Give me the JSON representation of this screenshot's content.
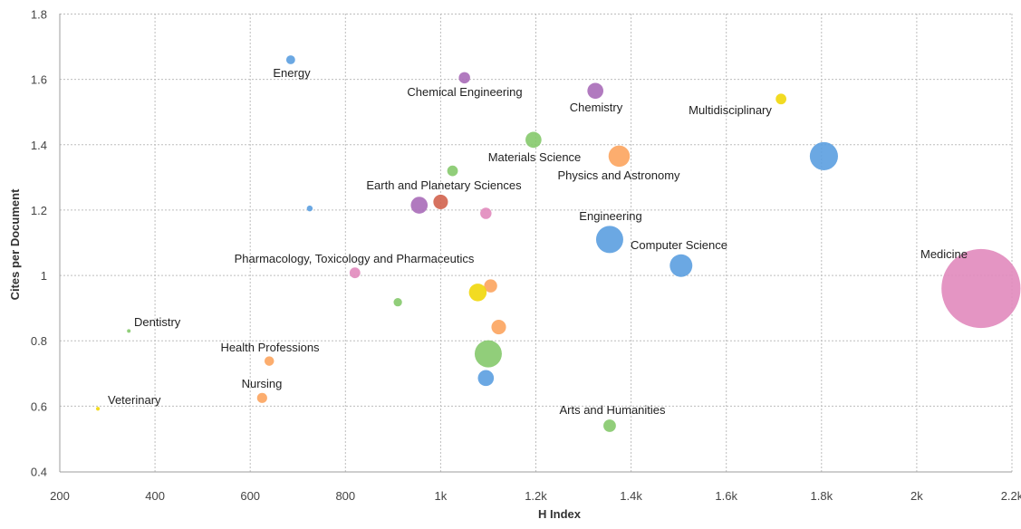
{
  "chart_data": {
    "type": "scatter",
    "subtype": "bubble",
    "xlabel": "H Index",
    "ylabel": "Cites per Document",
    "xlim": [
      200,
      2200
    ],
    "ylim": [
      0.4,
      1.8
    ],
    "x_ticks": [
      200,
      400,
      600,
      800,
      1000,
      1200,
      1400,
      1600,
      1800,
      2000,
      2200
    ],
    "x_tick_labels": [
      "200",
      "400",
      "600",
      "800",
      "1k",
      "1.2k",
      "1.4k",
      "1.6k",
      "1.8k",
      "2k",
      "2.2k"
    ],
    "y_ticks": [
      0.4,
      0.6,
      0.8,
      1.0,
      1.2,
      1.4,
      1.6,
      1.8
    ],
    "y_tick_labels": [
      "0.4",
      "0.6",
      "0.8",
      "1",
      "1.2",
      "1.4",
      "1.6",
      "1.8"
    ],
    "grid": true,
    "points": [
      {
        "label": "Medicine",
        "x": 2135,
        "y": 0.96,
        "size": 2200,
        "color": "#e189bd"
      },
      {
        "label": "Computer Science",
        "x": 1505,
        "y": 1.03,
        "size": 180,
        "color": "#5b9ee0"
      },
      {
        "label": "Engineering",
        "x": 1355,
        "y": 1.11,
        "size": 260,
        "color": "#5b9ee0"
      },
      {
        "label": "",
        "x": 1805,
        "y": 1.365,
        "size": 280,
        "color": "#5b9ee0"
      },
      {
        "label": "Physics and Astronomy",
        "x": 1375,
        "y": 1.365,
        "size": 160,
        "color": "#fca45e"
      },
      {
        "label": "Multidisciplinary",
        "x": 1715,
        "y": 1.54,
        "size": 40,
        "color": "#f1d70a"
      },
      {
        "label": "Chemistry",
        "x": 1325,
        "y": 1.565,
        "size": 90,
        "color": "#a86bb8"
      },
      {
        "label": "Materials Science",
        "x": 1195,
        "y": 1.415,
        "size": 90,
        "color": "#85c96b"
      },
      {
        "label": "Chemical Engineering",
        "x": 1050,
        "y": 1.605,
        "size": 45,
        "color": "#a86bb8"
      },
      {
        "label": "Energy",
        "x": 685,
        "y": 1.66,
        "size": 28,
        "color": "#5b9ee0"
      },
      {
        "label": "",
        "x": 1025,
        "y": 1.32,
        "size": 40,
        "color": "#85c96b"
      },
      {
        "label": "Earth and Planetary Sciences",
        "x": 1000,
        "y": 1.225,
        "size": 75,
        "color": "#d2634e"
      },
      {
        "label": "",
        "x": 955,
        "y": 1.215,
        "size": 100,
        "color": "#a86bb8"
      },
      {
        "label": "",
        "x": 1095,
        "y": 1.19,
        "size": 45,
        "color": "#e189bd"
      },
      {
        "label": "",
        "x": 725,
        "y": 1.205,
        "size": 12,
        "color": "#5b9ee0"
      },
      {
        "label": "Pharmacology, Toxicology and Pharmaceutics",
        "x": 820,
        "y": 1.008,
        "size": 40,
        "color": "#e189bd"
      },
      {
        "label": "",
        "x": 1105,
        "y": 0.968,
        "size": 60,
        "color": "#fca45e"
      },
      {
        "label": "",
        "x": 1078,
        "y": 0.948,
        "size": 110,
        "color": "#f1d70a"
      },
      {
        "label": "",
        "x": 910,
        "y": 0.918,
        "size": 25,
        "color": "#85c96b"
      },
      {
        "label": "",
        "x": 1122,
        "y": 0.842,
        "size": 75,
        "color": "#fca45e"
      },
      {
        "label": "",
        "x": 1100,
        "y": 0.76,
        "size": 260,
        "color": "#85c96b"
      },
      {
        "label": "",
        "x": 1095,
        "y": 0.686,
        "size": 90,
        "color": "#5b9ee0"
      },
      {
        "label": "Dentistry",
        "x": 345,
        "y": 0.83,
        "size": 3,
        "color": "#85c96b"
      },
      {
        "label": "Health Professions",
        "x": 640,
        "y": 0.738,
        "size": 32,
        "color": "#fca45e"
      },
      {
        "label": "Nursing",
        "x": 625,
        "y": 0.625,
        "size": 36,
        "color": "#fca45e"
      },
      {
        "label": "Veterinary",
        "x": 280,
        "y": 0.592,
        "size": 5,
        "color": "#f1d70a"
      },
      {
        "label": "Arts and Humanities",
        "x": 1355,
        "y": 0.54,
        "size": 55,
        "color": "#85c96b"
      }
    ]
  }
}
